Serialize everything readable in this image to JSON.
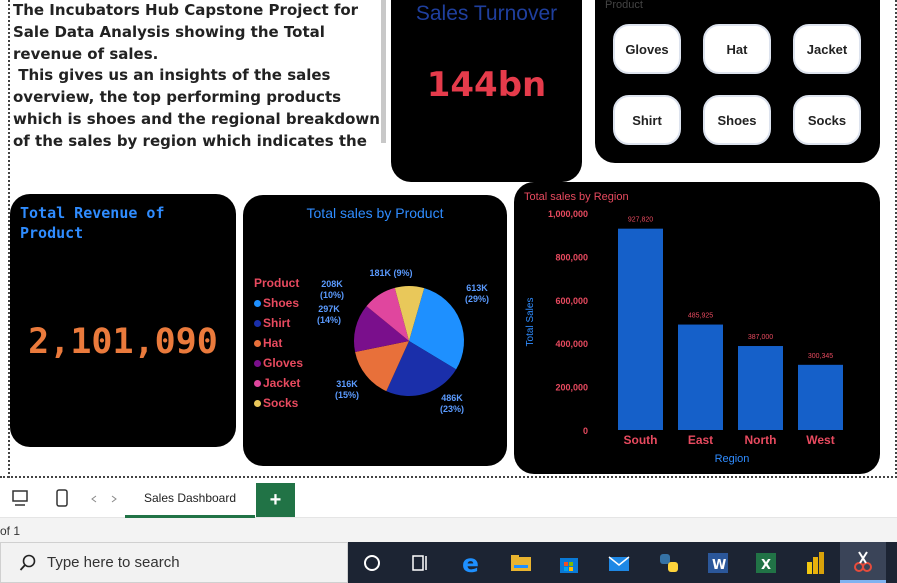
{
  "description": {
    "paragraph1": "The Incubators Hub Capstone Project for Sale Data Analysis showing the Total revenue of sales.",
    "paragraph2": " This gives us an insights of the sales overview, the top performing products which is shoes and the regional breakdown of the sales by region which indicates the south has the highest sales."
  },
  "turnover": {
    "title": "Sales Turnover",
    "value": "144bn"
  },
  "slicer": {
    "title": "Product",
    "options": [
      "Gloves",
      "Hat",
      "Jacket",
      "Shirt",
      "Shoes",
      "Socks"
    ]
  },
  "revenue_card": {
    "title": "Total Revenue of Product",
    "value": "2,101,090"
  },
  "chart_data": [
    {
      "type": "pie",
      "title": "Total sales by Product",
      "legend_title": "Product",
      "legend_position": "left",
      "categories": [
        "Shoes",
        "Shirt",
        "Hat",
        "Gloves",
        "Jacket",
        "Socks"
      ],
      "values": [
        613000,
        486000,
        316000,
        297000,
        208000,
        181000
      ],
      "data_labels": [
        "613K (29%)",
        "486K (23%)",
        "316K (15%)",
        "297K (14%)",
        "208K (10%)",
        "181K (9%)"
      ],
      "colors": [
        "#1e90ff",
        "#1a2faa",
        "#e8703a",
        "#7a0f8c",
        "#e0469e",
        "#e9c85a"
      ]
    },
    {
      "type": "bar",
      "title": "Total sales by Region",
      "xlabel": "Region",
      "ylabel": "Total Sales",
      "categories": [
        "South",
        "East",
        "North",
        "West"
      ],
      "values": [
        927820,
        485925,
        387000,
        300345
      ],
      "data_labels": [
        "927,820",
        "485,925",
        "387,000",
        "300,345"
      ],
      "ylim": [
        0,
        1000000
      ],
      "yticks": [
        "0",
        "200,000",
        "400,000",
        "600,000",
        "800,000",
        "1,000,000"
      ],
      "grid": false,
      "bar_color": "#1560c9"
    }
  ],
  "tabs": {
    "sheet_name": "Sales Dashboard",
    "add_label": "+"
  },
  "status": {
    "page_text": "of 1"
  },
  "taskbar": {
    "search_placeholder": "Type here to search"
  },
  "colors": {
    "card_bg": "#000000",
    "accent_blue": "#2f8cff",
    "accent_red": "#e53b4b",
    "excel_green": "#217346"
  }
}
